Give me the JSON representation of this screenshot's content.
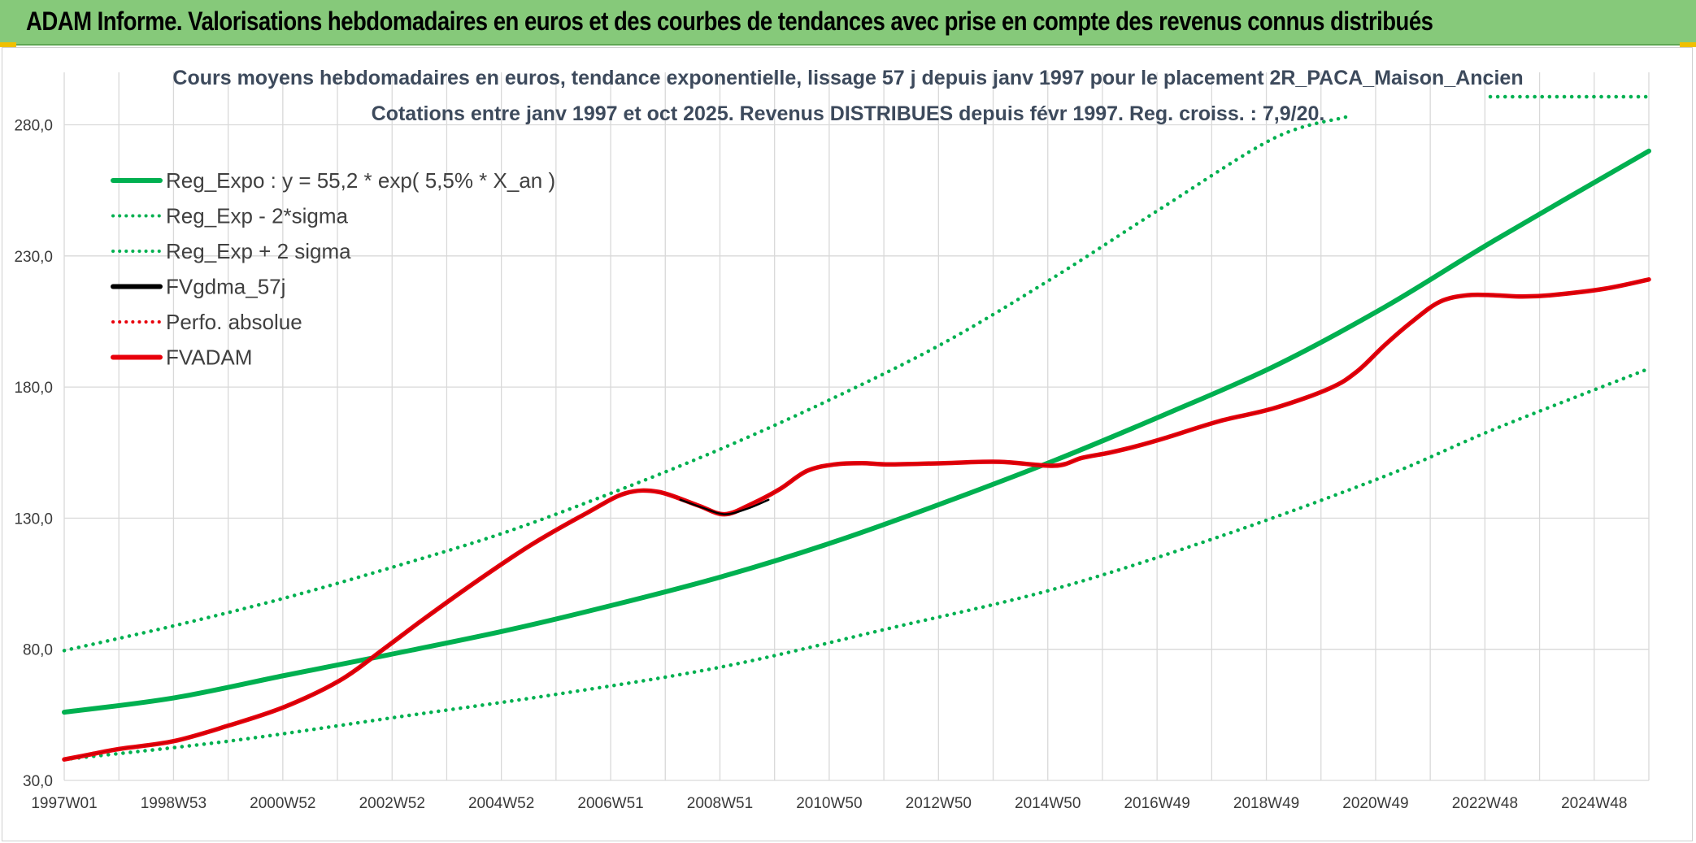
{
  "header": {
    "title": "ADAM Informe. Valorisations hebdomadaires en euros et des courbes de tendances avec prise en compte des revenus connus distribués"
  },
  "colors": {
    "header_bg": "#86c97a",
    "green_series": "#00b050",
    "red_series": "#e8000b",
    "black_series": "#000000",
    "corner_accent": "#f0c000"
  },
  "chart_data": {
    "type": "line",
    "title_line1": "Cours moyens hebdomadaires en euros, tendance exponentielle, lissage 57 j depuis janv 1997 pour le placement 2R_PACA_Maison_Ancien",
    "title_line2": "Cotations entre janv 1997 et oct 2025. Revenus DISTRIBUES depuis févr 1997. Reg. croiss. : 7,9/20.",
    "xlabel": "",
    "ylabel": "",
    "ylim": [
      30,
      300
    ],
    "yticks": [
      30,
      80,
      130,
      180,
      230,
      280
    ],
    "ytick_labels": [
      "30,0",
      "80,0",
      "130,0",
      "180,0",
      "230,0",
      "280,0"
    ],
    "xlim": [
      1997.0,
      2025.8
    ],
    "xtick_labels": [
      "1997W01",
      "1998W53",
      "2000W52",
      "2002W52",
      "2004W52",
      "2006W51",
      "2008W51",
      "2010W50",
      "2012W50",
      "2014W50",
      "2016W49",
      "2018W49",
      "2020W49",
      "2022W48",
      "2024W48"
    ],
    "grid": true,
    "legend_position": "top-left",
    "legend": [
      {
        "label": "Reg_Expo : y = 55,2 * exp( 5,5% *  X_an )",
        "style": "solid",
        "color": "#00b050"
      },
      {
        "label": "Reg_Exp - 2*sigma",
        "style": "dotted",
        "color": "#00b050"
      },
      {
        "label": "Reg_Exp + 2 sigma",
        "style": "dotted",
        "color": "#00b050"
      },
      {
        "label": "FVgdma_57j",
        "style": "solid",
        "color": "#000000"
      },
      {
        "label": "Perfo. absolue",
        "style": "dotted",
        "color": "#e8000b"
      },
      {
        "label": "FVADAM",
        "style": "solid",
        "color": "#e8000b"
      }
    ],
    "series": [
      {
        "name": "Reg_Expo : y = 55,2 * exp( 5,5% *  X_an )",
        "x": [
          1997,
          1999,
          2001,
          2002.8,
          2005,
          2007,
          2009,
          2011,
          2013,
          2015,
          2017,
          2019,
          2021,
          2023,
          2025.8
        ],
        "values": [
          56,
          61.5,
          70,
          77.5,
          87,
          97,
          108,
          121,
          136,
          152,
          169.5,
          188,
          210.5,
          236,
          270
        ]
      },
      {
        "name": "Reg_Exp - 2*sigma",
        "x": [
          1997,
          2000,
          2003,
          2006,
          2009,
          2012,
          2015,
          2018,
          2021,
          2023,
          2025.8
        ],
        "values": [
          38,
          45,
          54,
          63,
          73.5,
          88,
          103,
          123,
          146,
          164,
          187
        ]
      },
      {
        "name": "Reg_Exp + 2 sigma",
        "x": [
          1997,
          1999,
          2001,
          2003,
          2005,
          2007,
          2009,
          2011,
          2013,
          2015,
          2017,
          2019,
          2020.3
        ],
        "values": [
          79.5,
          89,
          99.5,
          111.5,
          124.5,
          140,
          157,
          176,
          197,
          222,
          249,
          275,
          283
        ]
      },
      {
        "name": "FVADAM",
        "x": [
          1997,
          1997.5,
          1998,
          1999,
          2000,
          2001,
          2002,
          2002.8,
          2003.5,
          2004.5,
          2005.5,
          2006.5,
          2007.2,
          2007.8,
          2008.5,
          2009,
          2009.5,
          2010,
          2010.5,
          2011,
          2011.5,
          2012,
          2013,
          2014,
          2015,
          2015.5,
          2016,
          2016.5,
          2017,
          2018,
          2019,
          2020,
          2020.5,
          2021,
          2021.5,
          2022,
          2022.5,
          2023,
          2023.5,
          2024,
          2025,
          2025.8
        ],
        "values": [
          38,
          40,
          42,
          45,
          51,
          58,
          68,
          80,
          91,
          106,
          120,
          132,
          139.5,
          140,
          135,
          131.5,
          135.5,
          141,
          148,
          150.5,
          151,
          150.5,
          151,
          151.5,
          150,
          153,
          155,
          157.5,
          160.5,
          167,
          172,
          179.5,
          186,
          196,
          205,
          212.5,
          215,
          215,
          214.5,
          215,
          217.5,
          221
        ]
      },
      {
        "name": "FVgdma_57j",
        "x": [
          2008.2,
          2008.6,
          2009,
          2009.4,
          2009.8
        ],
        "values": [
          137,
          134,
          131.5,
          133.5,
          137
        ]
      }
    ]
  }
}
